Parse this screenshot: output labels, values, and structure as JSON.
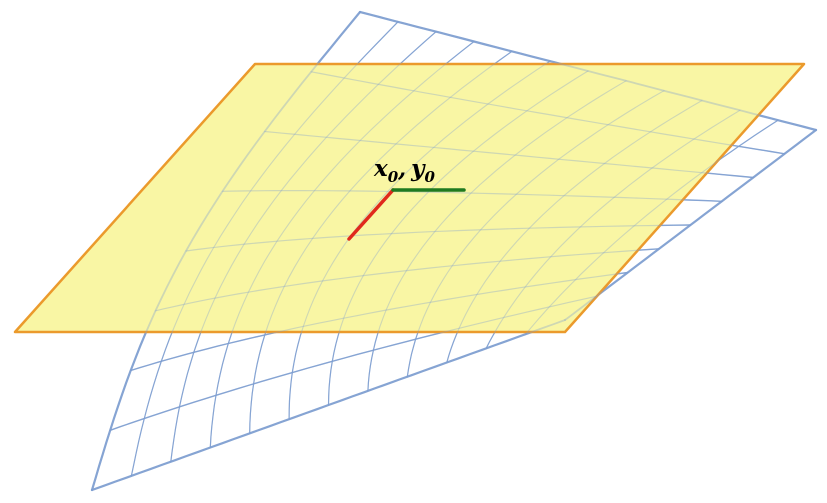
{
  "point_label": {
    "x_var": "x",
    "x_sub": "0",
    "separator": ",",
    "y_var": "y",
    "y_sub": "0"
  },
  "colors": {
    "plane_fill": "#f9f6a4",
    "plane_stroke": "#eb9a2c",
    "surface_mesh": "#7d9fd0",
    "x_direction": "#e0291c",
    "y_direction": "#1f7a1f",
    "label_text": "#000000"
  },
  "surface": {
    "rows": 8,
    "columns": 12
  }
}
